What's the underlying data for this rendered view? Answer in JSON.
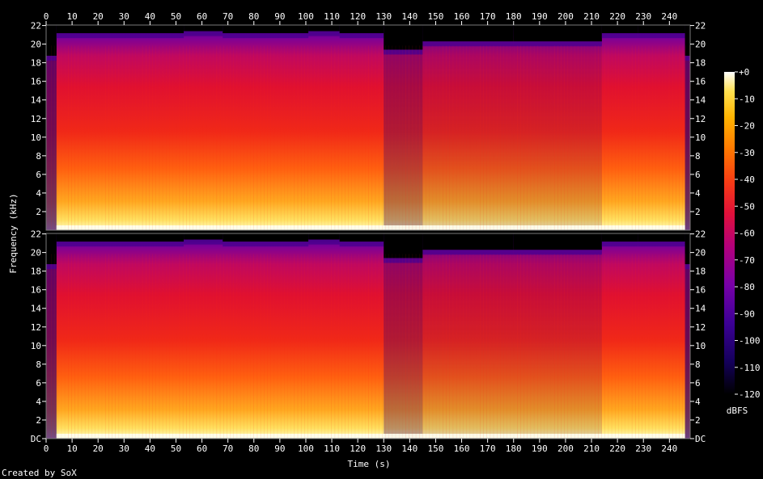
{
  "chart_data": {
    "type": "heatmap",
    "title": "",
    "xlabel": "Time (s)",
    "ylabel": "Frequency (kHz)",
    "x_ticks": [
      "0",
      "10",
      "20",
      "30",
      "40",
      "50",
      "60",
      "70",
      "80",
      "90",
      "100",
      "110",
      "120",
      "130",
      "140",
      "150",
      "160",
      "170",
      "180",
      "190",
      "200",
      "210",
      "220",
      "230",
      "240"
    ],
    "x_range": [
      0,
      248
    ],
    "channels": [
      {
        "name": "",
        "y_ticks": [
          "22",
          "20",
          "18",
          "16",
          "14",
          "12",
          "10",
          "8",
          "6",
          "4",
          "2"
        ],
        "y_range_khz": [
          0,
          22.05
        ]
      },
      {
        "name": "",
        "y_ticks": [
          "22",
          "20",
          "18",
          "16",
          "14",
          "12",
          "10",
          "8",
          "6",
          "4",
          "2",
          "DC"
        ],
        "y_range_khz": [
          0,
          22.05
        ]
      }
    ],
    "colorbar": {
      "label": "dBFS",
      "ticks": [
        "+0",
        "-10",
        "-20",
        "-30",
        "-40",
        "-50",
        "-60",
        "-70",
        "-80",
        "-90",
        "-100",
        "-110",
        "-120"
      ],
      "range_dbfs": [
        -120,
        0
      ],
      "colors": [
        "#000000",
        "#14005a",
        "#3c0096",
        "#7800a8",
        "#b4007a",
        "#e0103a",
        "#f83c14",
        "#ff7800",
        "#ffb400",
        "#ffe050",
        "#ffffff"
      ]
    },
    "time_segments_s": [
      {
        "start": 0,
        "end": 4,
        "level": "quiet-intro"
      },
      {
        "start": 4,
        "end": 53,
        "level": "loud"
      },
      {
        "start": 53,
        "end": 68,
        "level": "very-loud"
      },
      {
        "start": 68,
        "end": 101,
        "level": "loud"
      },
      {
        "start": 101,
        "end": 113,
        "level": "very-loud"
      },
      {
        "start": 113,
        "end": 130,
        "level": "loud"
      },
      {
        "start": 130,
        "end": 145,
        "level": "quieter"
      },
      {
        "start": 145,
        "end": 180,
        "level": "medium"
      },
      {
        "start": 180,
        "end": 214,
        "level": "medium"
      },
      {
        "start": 214,
        "end": 228,
        "level": "loud"
      },
      {
        "start": 228,
        "end": 246,
        "level": "loud"
      },
      {
        "start": 246,
        "end": 248,
        "level": "fade-out"
      }
    ]
  },
  "footer": {
    "credit": "Created by SoX"
  }
}
